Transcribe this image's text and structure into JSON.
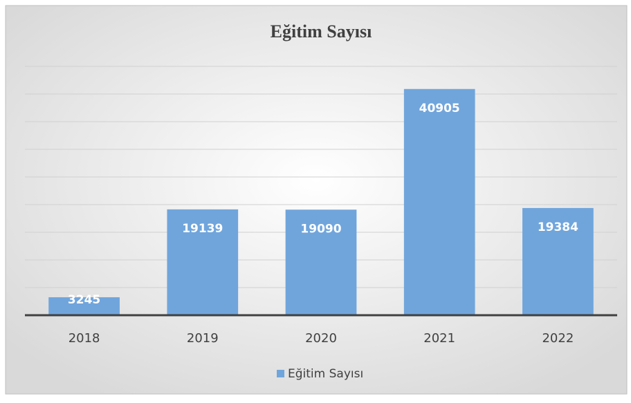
{
  "chart_data": {
    "type": "bar",
    "title": "Eğitim Sayısı",
    "categories": [
      "2018",
      "2019",
      "2020",
      "2021",
      "2022"
    ],
    "series": [
      {
        "name": "Eğitim Sayısı",
        "color": "#70a5dc",
        "values": [
          3245,
          19139,
          19090,
          40905,
          19384
        ]
      }
    ],
    "ylim": [
      0,
      45000
    ],
    "yticks": [
      0,
      5000,
      10000,
      15000,
      20000,
      25000,
      30000,
      35000,
      40000,
      45000
    ],
    "grid": true,
    "legend": "bottom"
  }
}
